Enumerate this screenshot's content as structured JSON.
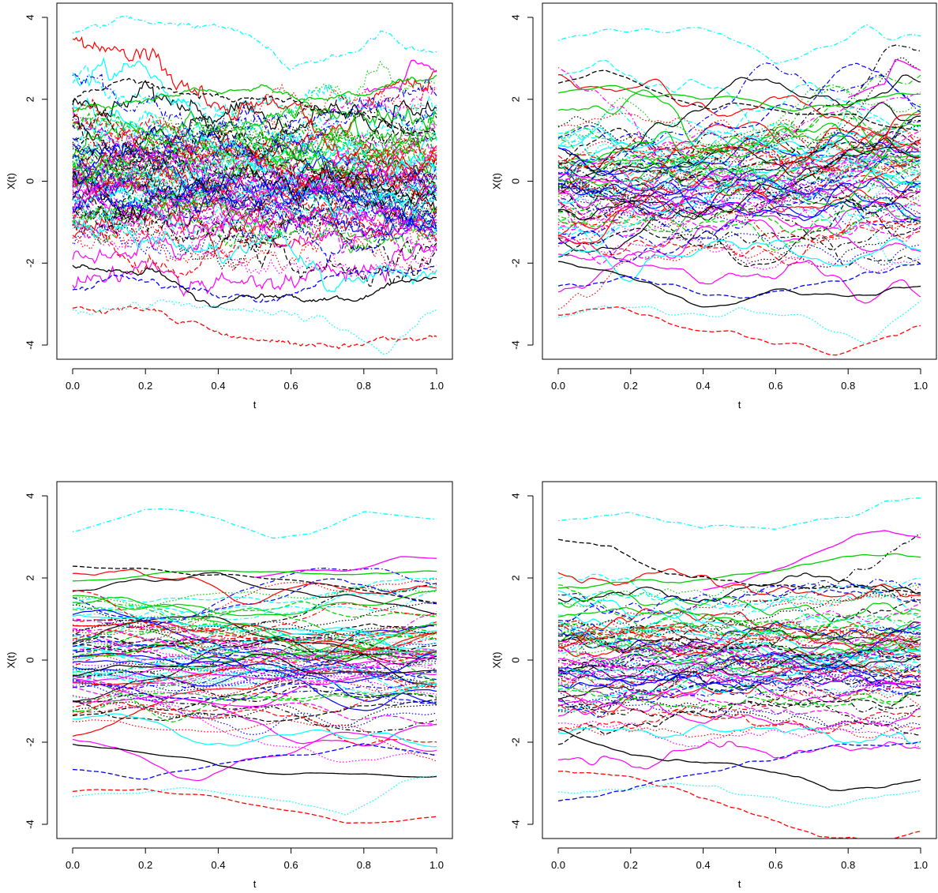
{
  "figure": {
    "layout": "2x2 grid of functional-data line plots",
    "panels_note": ""
  },
  "palette": [
    "#000000",
    "#ff0000",
    "#00cd00",
    "#0000ff",
    "#00ffff",
    "#ff00ff"
  ],
  "line_styles": [
    "solid",
    "dashed",
    "dotted",
    "dotdash"
  ],
  "chart_data": [
    {
      "type": "line",
      "panel": "top-left",
      "xlabel": "t",
      "ylabel": "X(t)",
      "xlim": [
        0,
        1
      ],
      "ylim": [
        -4,
        4
      ],
      "xticks": [
        "0.0",
        "0.2",
        "0.4",
        "0.6",
        "0.8",
        "1.0"
      ],
      "yticks": [
        "-4",
        "-2",
        "0",
        "2",
        "4"
      ],
      "grid": false,
      "legend": "none",
      "roughness": "very rough",
      "n_curves": 100,
      "series": [
        {
          "color": "#00ffff",
          "style": "dotdash",
          "values": [
            [
              0,
              3.45
            ],
            [
              0.15,
              3.75
            ],
            [
              0.3,
              3.6
            ],
            [
              0.45,
              3.55
            ],
            [
              0.55,
              3.2
            ],
            [
              0.6,
              2.85
            ],
            [
              0.7,
              3.2
            ],
            [
              0.8,
              3.5
            ],
            [
              0.85,
              3.9
            ],
            [
              0.9,
              3.65
            ],
            [
              1.0,
              3.5
            ]
          ]
        },
        {
          "color": "#ff00ff",
          "style": "solid",
          "values": [
            [
              0.8,
              2.1
            ],
            [
              0.9,
              2.35
            ],
            [
              0.93,
              2.95
            ],
            [
              1.0,
              2.75
            ]
          ]
        },
        {
          "color": "#00cd00",
          "style": "solid",
          "values": [
            [
              0,
              2.0
            ],
            [
              0.2,
              2.3
            ],
            [
              0.5,
              2.1
            ],
            [
              0.8,
              1.9
            ],
            [
              0.93,
              2.3
            ],
            [
              1.0,
              2.5
            ]
          ]
        },
        {
          "color": "#000000",
          "style": "dashed",
          "values": [
            [
              0,
              2.3
            ],
            [
              0.13,
              2.65
            ],
            [
              0.3,
              2.1
            ],
            [
              0.5,
              1.8
            ],
            [
              1.0,
              1.4
            ]
          ]
        },
        {
          "color": "#000000",
          "style": "solid",
          "values": [
            [
              0,
              -1.85
            ],
            [
              0.2,
              -2.3
            ],
            [
              0.4,
              -3.05
            ],
            [
              0.5,
              -2.9
            ],
            [
              0.6,
              -2.7
            ],
            [
              0.8,
              -2.8
            ],
            [
              0.9,
              -2.55
            ],
            [
              1.0,
              -2.6
            ]
          ]
        },
        {
          "color": "#ff0000",
          "style": "dashed",
          "values": [
            [
              0,
              -3.3
            ],
            [
              0.2,
              -3.2
            ],
            [
              0.4,
              -3.5
            ],
            [
              0.6,
              -3.95
            ],
            [
              0.8,
              -4.05
            ],
            [
              0.9,
              -3.9
            ],
            [
              1.0,
              -3.75
            ]
          ]
        },
        {
          "color": "#00ffff",
          "style": "dotted",
          "values": [
            [
              0,
              -3.3
            ],
            [
              0.3,
              -3.25
            ],
            [
              0.5,
              -3.0
            ],
            [
              0.7,
              -3.4
            ],
            [
              0.85,
              -3.95
            ],
            [
              0.95,
              -3.2
            ],
            [
              1.0,
              -2.9
            ]
          ]
        },
        {
          "color": "#0000ff",
          "style": "dashed",
          "values": [
            [
              0,
              -2.6
            ],
            [
              0.3,
              -2.35
            ],
            [
              0.5,
              -2.9
            ],
            [
              0.8,
              -2.4
            ],
            [
              1.0,
              -2.0
            ]
          ]
        }
      ]
    },
    {
      "type": "line",
      "panel": "top-right",
      "xlabel": "t",
      "ylabel": "X(t)",
      "xlim": [
        0,
        1
      ],
      "ylim": [
        -4,
        4
      ],
      "xticks": [
        "0.0",
        "0.2",
        "0.4",
        "0.6",
        "0.8",
        "1.0"
      ],
      "yticks": [
        "-4",
        "-2",
        "0",
        "2",
        "4"
      ],
      "grid": false,
      "legend": "none",
      "roughness": "moderately smooth",
      "n_curves": 100,
      "series": [
        {
          "color": "#00ffff",
          "style": "dotdash",
          "values": [
            [
              0,
              3.45
            ],
            [
              0.15,
              3.75
            ],
            [
              0.3,
              3.6
            ],
            [
              0.45,
              3.55
            ],
            [
              0.55,
              3.2
            ],
            [
              0.6,
              2.85
            ],
            [
              0.7,
              3.2
            ],
            [
              0.8,
              3.5
            ],
            [
              0.85,
              3.9
            ],
            [
              0.9,
              3.65
            ],
            [
              1.0,
              3.5
            ]
          ]
        },
        {
          "color": "#ff00ff",
          "style": "solid",
          "values": [
            [
              0.8,
              2.1
            ],
            [
              0.9,
              2.35
            ],
            [
              0.93,
              2.95
            ],
            [
              1.0,
              2.75
            ]
          ]
        },
        {
          "color": "#00cd00",
          "style": "solid",
          "values": [
            [
              0,
              1.9
            ],
            [
              0.2,
              2.1
            ],
            [
              0.5,
              2.0
            ],
            [
              0.8,
              1.9
            ],
            [
              0.93,
              2.3
            ],
            [
              1.0,
              2.4
            ]
          ]
        },
        {
          "color": "#000000",
          "style": "dashed",
          "values": [
            [
              0,
              2.3
            ],
            [
              0.13,
              2.6
            ],
            [
              0.3,
              2.1
            ],
            [
              0.5,
              1.8
            ],
            [
              1.0,
              1.4
            ]
          ]
        },
        {
          "color": "#000000",
          "style": "solid",
          "values": [
            [
              0,
              -1.9
            ],
            [
              0.2,
              -2.3
            ],
            [
              0.4,
              -3.1
            ],
            [
              0.5,
              -2.9
            ],
            [
              0.6,
              -2.75
            ],
            [
              0.8,
              -2.85
            ],
            [
              0.9,
              -2.6
            ],
            [
              1.0,
              -2.65
            ]
          ]
        },
        {
          "color": "#ff0000",
          "style": "dashed",
          "values": [
            [
              0,
              -3.3
            ],
            [
              0.2,
              -3.2
            ],
            [
              0.4,
              -3.5
            ],
            [
              0.6,
              -3.95
            ],
            [
              0.8,
              -4.1
            ],
            [
              0.9,
              -3.9
            ],
            [
              1.0,
              -3.75
            ]
          ]
        },
        {
          "color": "#00ffff",
          "style": "dotted",
          "values": [
            [
              0,
              -3.3
            ],
            [
              0.3,
              -3.25
            ],
            [
              0.5,
              -3.0
            ],
            [
              0.7,
              -3.4
            ],
            [
              0.85,
              -3.95
            ],
            [
              0.95,
              -3.2
            ],
            [
              1.0,
              -2.9
            ]
          ]
        },
        {
          "color": "#0000ff",
          "style": "dashed",
          "values": [
            [
              0,
              -2.6
            ],
            [
              0.3,
              -2.35
            ],
            [
              0.5,
              -2.9
            ],
            [
              0.8,
              -2.4
            ],
            [
              1.0,
              -2.0
            ]
          ]
        }
      ]
    },
    {
      "type": "line",
      "panel": "bottom-left",
      "xlabel": "t",
      "ylabel": "X(t)",
      "xlim": [
        0,
        1
      ],
      "ylim": [
        -4,
        4
      ],
      "xticks": [
        "0.0",
        "0.2",
        "0.4",
        "0.6",
        "0.8",
        "1.0"
      ],
      "yticks": [
        "-4",
        "-2",
        "0",
        "2",
        "4"
      ],
      "grid": false,
      "legend": "none",
      "roughness": "smooth",
      "n_curves": 100,
      "series": [
        {
          "color": "#00ffff",
          "style": "dotdash",
          "values": [
            [
              0,
              3.15
            ],
            [
              0.2,
              3.65
            ],
            [
              0.4,
              3.45
            ],
            [
              0.55,
              3.0
            ],
            [
              0.65,
              3.1
            ],
            [
              0.8,
              3.6
            ],
            [
              1.0,
              3.45
            ]
          ]
        },
        {
          "color": "#ff00ff",
          "style": "solid",
          "values": [
            [
              0.5,
              2.0
            ],
            [
              0.75,
              2.2
            ],
            [
              0.9,
              2.55
            ],
            [
              1.0,
              2.5
            ]
          ]
        },
        {
          "color": "#00cd00",
          "style": "solid",
          "values": [
            [
              0,
              1.9
            ],
            [
              0.2,
              2.0
            ],
            [
              0.5,
              2.2
            ],
            [
              0.8,
              2.15
            ],
            [
              1.0,
              2.15
            ]
          ]
        },
        {
          "color": "#000000",
          "style": "dashed",
          "values": [
            [
              0,
              2.3
            ],
            [
              0.2,
              2.3
            ],
            [
              0.5,
              2.0
            ],
            [
              1.0,
              1.4
            ]
          ]
        },
        {
          "color": "#000000",
          "style": "solid",
          "values": [
            [
              0,
              -2.0
            ],
            [
              0.2,
              -2.3
            ],
            [
              0.4,
              -2.7
            ],
            [
              0.6,
              -2.8
            ],
            [
              0.8,
              -2.65
            ],
            [
              1.0,
              -2.75
            ]
          ]
        },
        {
          "color": "#ff0000",
          "style": "dashed",
          "values": [
            [
              0,
              -3.25
            ],
            [
              0.2,
              -3.1
            ],
            [
              0.4,
              -3.4
            ],
            [
              0.6,
              -3.7
            ],
            [
              0.75,
              -3.95
            ],
            [
              1.0,
              -3.8
            ]
          ]
        },
        {
          "color": "#00ffff",
          "style": "dotted",
          "values": [
            [
              0,
              -3.3
            ],
            [
              0.3,
              -3.05
            ],
            [
              0.6,
              -3.4
            ],
            [
              0.75,
              -3.85
            ],
            [
              0.9,
              -3.1
            ],
            [
              1.0,
              -3.0
            ]
          ]
        },
        {
          "color": "#0000ff",
          "style": "dashed",
          "values": [
            [
              0,
              -2.75
            ],
            [
              0.2,
              -2.9
            ],
            [
              0.4,
              -2.5
            ],
            [
              0.6,
              -2.3
            ],
            [
              0.8,
              -2.0
            ],
            [
              1.0,
              -2.4
            ]
          ]
        }
      ]
    },
    {
      "type": "line",
      "panel": "bottom-right",
      "xlabel": "t",
      "ylabel": "X(t)",
      "xlim": [
        0,
        1
      ],
      "ylim": [
        -4,
        4
      ],
      "xticks": [
        "0.0",
        "0.2",
        "0.4",
        "0.6",
        "0.8",
        "1.0"
      ],
      "yticks": [
        "-4",
        "-2",
        "0",
        "2",
        "4"
      ],
      "grid": false,
      "legend": "none",
      "roughness": "slightly rough",
      "n_curves": 100,
      "series": [
        {
          "color": "#00ffff",
          "style": "dotdash",
          "values": [
            [
              0,
              3.4
            ],
            [
              0.2,
              3.6
            ],
            [
              0.4,
              3.3
            ],
            [
              0.6,
              3.25
            ],
            [
              0.8,
              3.5
            ],
            [
              0.9,
              3.75
            ],
            [
              1.0,
              3.7
            ]
          ]
        },
        {
          "color": "#ff00ff",
          "style": "solid",
          "values": [
            [
              0.4,
              1.9
            ],
            [
              0.6,
              2.2
            ],
            [
              0.8,
              2.9
            ],
            [
              0.9,
              3.05
            ],
            [
              1.0,
              2.85
            ]
          ]
        },
        {
          "color": "#00cd00",
          "style": "solid",
          "values": [
            [
              0,
              2.0
            ],
            [
              0.3,
              2.0
            ],
            [
              0.6,
              2.1
            ],
            [
              0.8,
              2.4
            ],
            [
              1.0,
              2.4
            ]
          ]
        },
        {
          "color": "#000000",
          "style": "dashed",
          "values": [
            [
              0,
              3.0
            ],
            [
              0.15,
              2.8
            ],
            [
              0.3,
              2.2
            ],
            [
              0.5,
              1.9
            ],
            [
              1.0,
              1.5
            ]
          ]
        },
        {
          "color": "#000000",
          "style": "solid",
          "values": [
            [
              0,
              -1.6
            ],
            [
              0.2,
              -2.3
            ],
            [
              0.4,
              -2.6
            ],
            [
              0.6,
              -2.75
            ],
            [
              0.75,
              -3.15
            ],
            [
              0.9,
              -3.0
            ],
            [
              1.0,
              -2.8
            ]
          ]
        },
        {
          "color": "#ff0000",
          "style": "dashed",
          "values": [
            [
              0,
              -2.8
            ],
            [
              0.2,
              -2.9
            ],
            [
              0.4,
              -3.3
            ],
            [
              0.6,
              -3.9
            ],
            [
              0.75,
              -4.3
            ],
            [
              0.9,
              -4.35
            ],
            [
              1.0,
              -4.2
            ]
          ]
        },
        {
          "color": "#00ffff",
          "style": "dotted",
          "values": [
            [
              0,
              -3.35
            ],
            [
              0.3,
              -3.1
            ],
            [
              0.6,
              -3.3
            ],
            [
              0.75,
              -3.55
            ],
            [
              0.9,
              -3.2
            ],
            [
              1.0,
              -3.05
            ]
          ]
        },
        {
          "color": "#0000ff",
          "style": "dashed",
          "values": [
            [
              0,
              -3.4
            ],
            [
              0.2,
              -3.1
            ],
            [
              0.5,
              -2.6
            ],
            [
              0.8,
              -2.1
            ],
            [
              1.0,
              -1.9
            ]
          ]
        }
      ]
    }
  ]
}
